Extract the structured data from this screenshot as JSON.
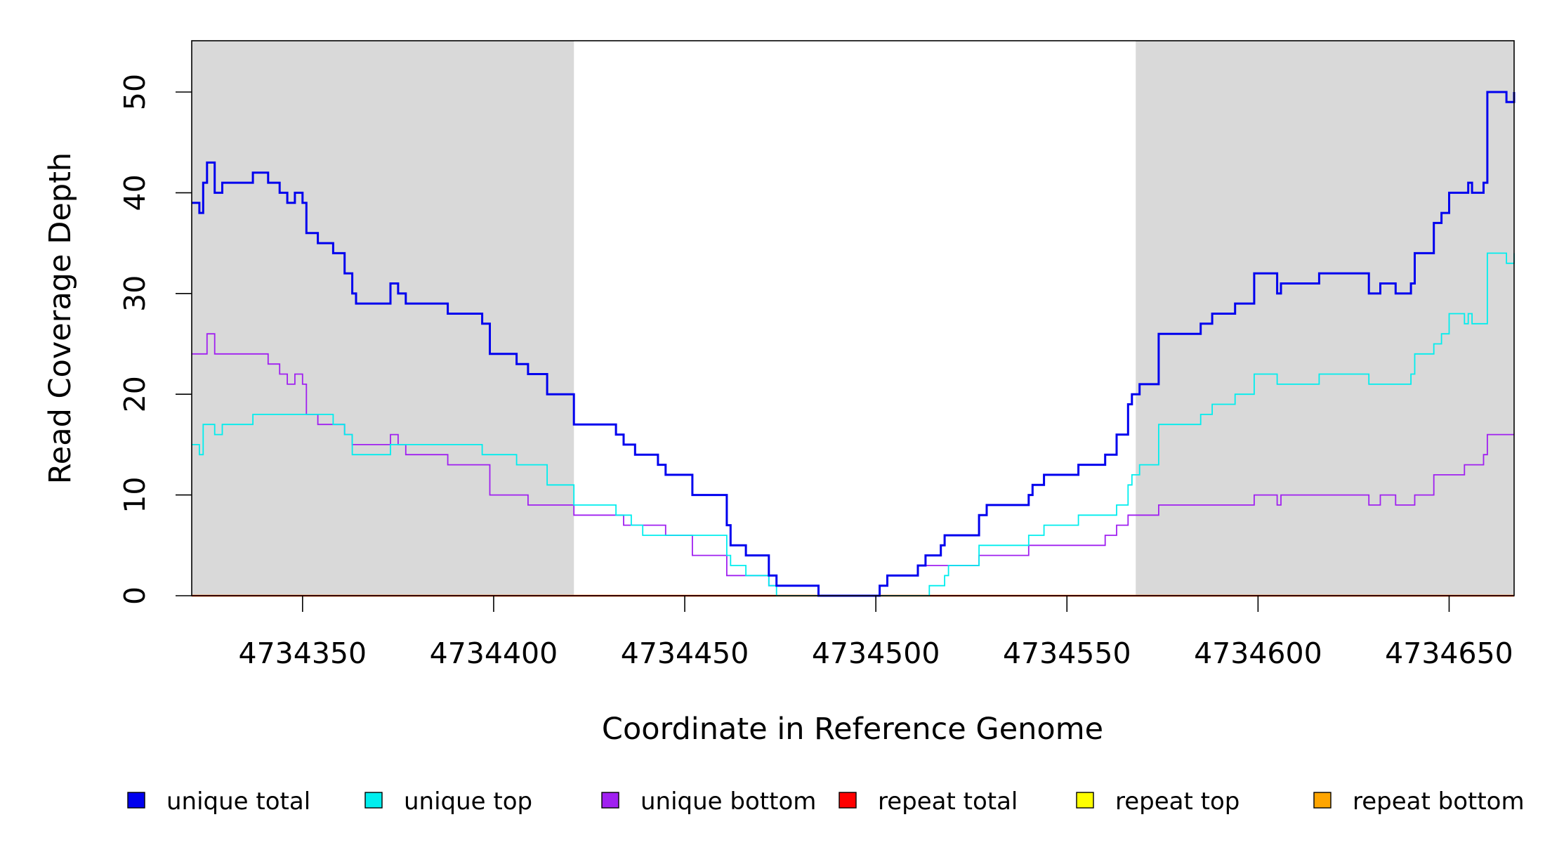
{
  "chart_data": {
    "type": "line",
    "step": true,
    "title": "",
    "xlabel": "Coordinate in Reference Genome",
    "ylabel": "Read Coverage Depth",
    "xlim": [
      4734321,
      4734667
    ],
    "ylim": [
      0,
      55
    ],
    "x_ticks": [
      4734350,
      4734400,
      4734450,
      4734500,
      4734550,
      4734600,
      4734650
    ],
    "x_tick_labels": [
      "4734350",
      "4734400",
      "4734450",
      "4734500",
      "4734550",
      "4734600",
      "4734650"
    ],
    "y_ticks": [
      0,
      10,
      20,
      30,
      40,
      50
    ],
    "y_tick_labels": [
      "0",
      "10",
      "20",
      "30",
      "40",
      "50"
    ],
    "shaded_regions": [
      {
        "x_start": 4734321,
        "x_end": 4734421,
        "color": "#d9d9d9"
      },
      {
        "x_start": 4734568,
        "x_end": 4734667,
        "color": "#d9d9d9"
      }
    ],
    "grid": false,
    "legend_position": "bottom",
    "series": [
      {
        "name": "unique total",
        "color": "#0000ee",
        "points": [
          [
            4734321,
            39
          ],
          [
            4734323,
            38
          ],
          [
            4734324,
            41
          ],
          [
            4734325,
            43
          ],
          [
            4734327,
            40
          ],
          [
            4734329,
            41
          ],
          [
            4734337,
            42
          ],
          [
            4734341,
            41
          ],
          [
            4734344,
            40
          ],
          [
            4734346,
            39
          ],
          [
            4734348,
            40
          ],
          [
            4734350,
            39
          ],
          [
            4734351,
            36
          ],
          [
            4734354,
            35
          ],
          [
            4734358,
            34
          ],
          [
            4734361,
            32
          ],
          [
            4734363,
            30
          ],
          [
            4734364,
            29
          ],
          [
            4734373,
            31
          ],
          [
            4734375,
            30
          ],
          [
            4734377,
            29
          ],
          [
            4734388,
            28
          ],
          [
            4734397,
            27
          ],
          [
            4734399,
            24
          ],
          [
            4734406,
            23
          ],
          [
            4734409,
            22
          ],
          [
            4734414,
            20
          ],
          [
            4734421,
            17
          ],
          [
            4734432,
            16
          ],
          [
            4734434,
            15
          ],
          [
            4734437,
            14
          ],
          [
            4734443,
            13
          ],
          [
            4734445,
            12
          ],
          [
            4734452,
            10
          ],
          [
            4734461,
            7
          ],
          [
            4734462,
            5
          ],
          [
            4734466,
            4
          ],
          [
            4734472,
            2
          ],
          [
            4734474,
            1
          ],
          [
            4734485,
            0
          ],
          [
            4734501,
            1
          ],
          [
            4734503,
            2
          ],
          [
            4734511,
            3
          ],
          [
            4734513,
            4
          ],
          [
            4734517,
            5
          ],
          [
            4734518,
            6
          ],
          [
            4734527,
            8
          ],
          [
            4734529,
            9
          ],
          [
            4734540,
            10
          ],
          [
            4734541,
            11
          ],
          [
            4734544,
            12
          ],
          [
            4734553,
            13
          ],
          [
            4734560,
            14
          ],
          [
            4734563,
            16
          ],
          [
            4734566,
            19
          ],
          [
            4734567,
            20
          ],
          [
            4734569,
            21
          ],
          [
            4734574,
            26
          ],
          [
            4734585,
            27
          ],
          [
            4734588,
            28
          ],
          [
            4734594,
            29
          ],
          [
            4734599,
            32
          ],
          [
            4734605,
            30
          ],
          [
            4734606,
            31
          ],
          [
            4734616,
            32
          ],
          [
            4734629,
            30
          ],
          [
            4734632,
            31
          ],
          [
            4734636,
            30
          ],
          [
            4734640,
            31
          ],
          [
            4734641,
            34
          ],
          [
            4734646,
            37
          ],
          [
            4734648,
            38
          ],
          [
            4734650,
            40
          ],
          [
            4734655,
            41
          ],
          [
            4734656,
            40
          ],
          [
            4734659,
            41
          ],
          [
            4734660,
            50
          ],
          [
            4734665,
            49
          ],
          [
            4734667,
            50
          ]
        ]
      },
      {
        "name": "unique top",
        "color": "#00eeee",
        "points": [
          [
            4734321,
            15
          ],
          [
            4734323,
            14
          ],
          [
            4734324,
            17
          ],
          [
            4734327,
            16
          ],
          [
            4734329,
            17
          ],
          [
            4734337,
            18
          ],
          [
            4734358,
            17
          ],
          [
            4734361,
            16
          ],
          [
            4734363,
            14
          ],
          [
            4734373,
            15
          ],
          [
            4734397,
            14
          ],
          [
            4734406,
            13
          ],
          [
            4734414,
            11
          ],
          [
            4734421,
            9
          ],
          [
            4734432,
            8
          ],
          [
            4734436,
            7
          ],
          [
            4734439,
            6
          ],
          [
            4734452,
            6
          ],
          [
            4734461,
            4
          ],
          [
            4734462,
            3
          ],
          [
            4734466,
            2
          ],
          [
            4734472,
            1
          ],
          [
            4734474,
            0
          ],
          [
            4734514,
            1
          ],
          [
            4734518,
            2
          ],
          [
            4734519,
            3
          ],
          [
            4734527,
            5
          ],
          [
            4734540,
            6
          ],
          [
            4734544,
            7
          ],
          [
            4734553,
            8
          ],
          [
            4734563,
            9
          ],
          [
            4734566,
            11
          ],
          [
            4734567,
            12
          ],
          [
            4734569,
            13
          ],
          [
            4734574,
            17
          ],
          [
            4734585,
            18
          ],
          [
            4734588,
            19
          ],
          [
            4734594,
            20
          ],
          [
            4734599,
            22
          ],
          [
            4734605,
            21
          ],
          [
            4734616,
            22
          ],
          [
            4734629,
            21
          ],
          [
            4734640,
            22
          ],
          [
            4734641,
            24
          ],
          [
            4734646,
            25
          ],
          [
            4734648,
            26
          ],
          [
            4734650,
            28
          ],
          [
            4734654,
            27
          ],
          [
            4734655,
            28
          ],
          [
            4734656,
            27
          ],
          [
            4734660,
            34
          ],
          [
            4734665,
            33
          ],
          [
            4734667,
            34
          ]
        ]
      },
      {
        "name": "unique bottom",
        "color": "#a020f0",
        "points": [
          [
            4734321,
            24
          ],
          [
            4734325,
            26
          ],
          [
            4734327,
            24
          ],
          [
            4734341,
            23
          ],
          [
            4734344,
            22
          ],
          [
            4734346,
            21
          ],
          [
            4734348,
            22
          ],
          [
            4734350,
            21
          ],
          [
            4734351,
            18
          ],
          [
            4734354,
            17
          ],
          [
            4734361,
            16
          ],
          [
            4734363,
            15
          ],
          [
            4734373,
            16
          ],
          [
            4734375,
            15
          ],
          [
            4734377,
            14
          ],
          [
            4734388,
            13
          ],
          [
            4734399,
            10
          ],
          [
            4734409,
            9
          ],
          [
            4734421,
            8
          ],
          [
            4734434,
            7
          ],
          [
            4734445,
            6
          ],
          [
            4734452,
            4
          ],
          [
            4734461,
            2
          ],
          [
            4734472,
            1
          ],
          [
            4734485,
            0
          ],
          [
            4734501,
            1
          ],
          [
            4734503,
            2
          ],
          [
            4734511,
            3
          ],
          [
            4734527,
            4
          ],
          [
            4734540,
            5
          ],
          [
            4734560,
            6
          ],
          [
            4734563,
            7
          ],
          [
            4734566,
            8
          ],
          [
            4734574,
            9
          ],
          [
            4734599,
            10
          ],
          [
            4734605,
            9
          ],
          [
            4734606,
            10
          ],
          [
            4734629,
            9
          ],
          [
            4734632,
            10
          ],
          [
            4734636,
            9
          ],
          [
            4734641,
            10
          ],
          [
            4734646,
            12
          ],
          [
            4734654,
            13
          ],
          [
            4734659,
            14
          ],
          [
            4734660,
            16
          ],
          [
            4734667,
            16
          ]
        ]
      },
      {
        "name": "repeat total",
        "color": "#ff0000",
        "points": [
          [
            4734321,
            0
          ],
          [
            4734667,
            0
          ]
        ]
      },
      {
        "name": "repeat top",
        "color": "#ffff00",
        "points": [
          [
            4734321,
            0
          ],
          [
            4734667,
            0
          ]
        ]
      },
      {
        "name": "repeat bottom",
        "color": "#ffa500",
        "points": [
          [
            4734321,
            0
          ],
          [
            4734667,
            0
          ]
        ]
      }
    ]
  }
}
